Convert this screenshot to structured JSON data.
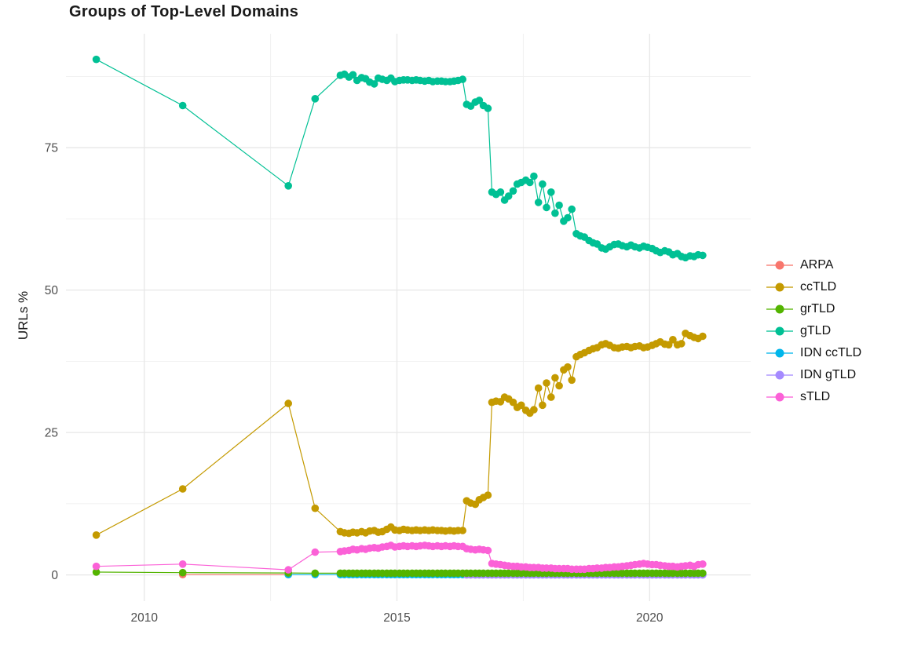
{
  "chart_data": {
    "type": "scatter",
    "title": "Groups of Top-Level Domains",
    "xlabel": "",
    "ylabel": "URLs %",
    "x_ticks": [
      2010,
      2015,
      2020
    ],
    "x_ticks_minor": [
      2012.5,
      2017.5
    ],
    "y_ticks": [
      0,
      25,
      50,
      75
    ],
    "y_ticks_minor": [
      12.5,
      37.5,
      62.5,
      87.5
    ],
    "x_range": [
      2008.45,
      2022.0
    ],
    "y_range": [
      -4.6,
      95.0
    ],
    "grid": "on",
    "legend_position": "right",
    "x": [
      2009.05,
      2010.76,
      2012.85,
      2013.38,
      2013.88,
      2013.96,
      2014.05,
      2014.13,
      2014.21,
      2014.3,
      2014.38,
      2014.46,
      2014.55,
      2014.63,
      2014.71,
      2014.8,
      2014.88,
      2014.96,
      2015.05,
      2015.13,
      2015.21,
      2015.3,
      2015.38,
      2015.46,
      2015.55,
      2015.63,
      2015.71,
      2015.8,
      2015.88,
      2015.96,
      2016.05,
      2016.13,
      2016.21,
      2016.3,
      2016.38,
      2016.46,
      2016.55,
      2016.63,
      2016.71,
      2016.8,
      2016.88,
      2016.96,
      2017.05,
      2017.13,
      2017.21,
      2017.3,
      2017.38,
      2017.46,
      2017.55,
      2017.63,
      2017.71,
      2017.8,
      2017.88,
      2017.96,
      2018.05,
      2018.13,
      2018.21,
      2018.3,
      2018.38,
      2018.46,
      2018.55,
      2018.63,
      2018.71,
      2018.8,
      2018.88,
      2018.96,
      2019.05,
      2019.13,
      2019.21,
      2019.3,
      2019.38,
      2019.46,
      2019.55,
      2019.63,
      2019.71,
      2019.8,
      2019.88,
      2019.96,
      2020.05,
      2020.13,
      2020.21,
      2020.3,
      2020.38,
      2020.46,
      2020.55,
      2020.63,
      2020.71,
      2020.8,
      2020.88,
      2020.96,
      2021.05
    ],
    "series": [
      {
        "name": "ARPA",
        "color": "#F8766D",
        "y": [
          null,
          0.05,
          0.05,
          null,
          null,
          null,
          null,
          null,
          null,
          null,
          null,
          null,
          null,
          null,
          null,
          null,
          null,
          null,
          null,
          null,
          null,
          null,
          null,
          null,
          null,
          null,
          null,
          null,
          null,
          null,
          null,
          null,
          null,
          null,
          null,
          null,
          null,
          null,
          null,
          null,
          null,
          null,
          null,
          null,
          null,
          null,
          null,
          null,
          null,
          null,
          null,
          null,
          null,
          null,
          null,
          null,
          null,
          null,
          null,
          null,
          null,
          null,
          null,
          null,
          null,
          null,
          null,
          null,
          null,
          null,
          null,
          null,
          null,
          null,
          null,
          null,
          null,
          null,
          null,
          null,
          null,
          null,
          null,
          null,
          null,
          null,
          null,
          null,
          null,
          null,
          null
        ]
      },
      {
        "name": "ccTLD",
        "color": "#C49A00",
        "y": [
          7.0,
          15.1,
          30.1,
          11.7,
          7.6,
          7.4,
          7.3,
          7.5,
          7.4,
          7.6,
          7.4,
          7.7,
          7.8,
          7.5,
          7.6,
          8.0,
          8.4,
          7.9,
          7.8,
          8.0,
          7.9,
          7.8,
          7.9,
          7.8,
          7.9,
          7.8,
          7.9,
          7.8,
          7.8,
          7.7,
          7.8,
          7.7,
          7.8,
          7.8,
          13.0,
          12.6,
          12.4,
          13.2,
          13.6,
          14.0,
          30.3,
          30.5,
          30.4,
          31.2,
          30.9,
          30.3,
          29.4,
          29.8,
          28.9,
          28.4,
          29.0,
          32.8,
          29.8,
          33.7,
          31.2,
          34.6,
          33.2,
          36.0,
          36.5,
          34.2,
          38.3,
          38.7,
          39.0,
          39.4,
          39.7,
          39.9,
          40.4,
          40.6,
          40.3,
          39.9,
          39.8,
          40.0,
          40.1,
          39.9,
          40.1,
          40.2,
          39.9,
          40.0,
          40.3,
          40.6,
          40.9,
          40.5,
          40.4,
          41.3,
          40.4,
          40.6,
          42.4,
          42.0,
          41.7,
          41.5,
          41.9
        ]
      },
      {
        "name": "grTLD",
        "color": "#53B400",
        "y": [
          0.5,
          0.4,
          0.35,
          0.3,
          0.3,
          0.3,
          0.3,
          0.3,
          0.3,
          0.3,
          0.3,
          0.3,
          0.3,
          0.3,
          0.3,
          0.3,
          0.3,
          0.3,
          0.3,
          0.3,
          0.3,
          0.3,
          0.3,
          0.3,
          0.3,
          0.3,
          0.3,
          0.3,
          0.3,
          0.3,
          0.3,
          0.3,
          0.3,
          0.3,
          0.3,
          0.3,
          0.3,
          0.3,
          0.3,
          0.3,
          0.3,
          0.3,
          0.3,
          0.3,
          0.3,
          0.3,
          0.3,
          0.3,
          0.3,
          0.3,
          0.3,
          0.3,
          0.3,
          0.3,
          0.3,
          0.3,
          0.3,
          0.3,
          0.3,
          0.3,
          0.3,
          0.3,
          0.3,
          0.3,
          0.3,
          0.3,
          0.3,
          0.3,
          0.3,
          0.3,
          0.3,
          0.3,
          0.3,
          0.3,
          0.3,
          0.3,
          0.3,
          0.3,
          0.3,
          0.3,
          0.3,
          0.3,
          0.3,
          0.3,
          0.3,
          0.3,
          0.3,
          0.3,
          0.3,
          0.3,
          0.3
        ]
      },
      {
        "name": "gTLD",
        "color": "#00C094",
        "y": [
          90.5,
          82.4,
          68.3,
          83.6,
          87.7,
          87.9,
          87.4,
          87.8,
          86.8,
          87.3,
          87.1,
          86.5,
          86.2,
          87.2,
          87.0,
          86.8,
          87.2,
          86.6,
          86.8,
          86.9,
          86.9,
          86.8,
          86.9,
          86.8,
          86.7,
          86.8,
          86.6,
          86.7,
          86.7,
          86.6,
          86.6,
          86.7,
          86.8,
          87.0,
          82.6,
          82.3,
          83.0,
          83.3,
          82.4,
          81.9,
          67.2,
          66.8,
          67.2,
          65.8,
          66.5,
          67.4,
          68.6,
          68.9,
          69.3,
          68.9,
          70.0,
          65.4,
          68.6,
          64.5,
          67.2,
          63.5,
          64.9,
          62.1,
          62.7,
          64.2,
          59.9,
          59.5,
          59.3,
          58.7,
          58.3,
          58.1,
          57.4,
          57.2,
          57.6,
          58.0,
          58.1,
          57.8,
          57.6,
          57.9,
          57.6,
          57.4,
          57.7,
          57.5,
          57.3,
          56.9,
          56.6,
          56.9,
          56.7,
          56.2,
          56.4,
          55.9,
          55.7,
          56.0,
          55.9,
          56.2,
          56.1
        ]
      },
      {
        "name": "IDN ccTLD",
        "color": "#00B6EB",
        "y": [
          null,
          null,
          0.05,
          0.05,
          0.05,
          0.05,
          0.05,
          0.05,
          0.05,
          0.05,
          0.05,
          0.05,
          0.05,
          0.05,
          0.05,
          0.05,
          0.05,
          0.05,
          0.05,
          0.05,
          0.05,
          0.05,
          0.05,
          0.05,
          0.05,
          0.05,
          0.05,
          0.05,
          0.05,
          0.05,
          0.05,
          0.05,
          0.05,
          0.05,
          0.05,
          0.05,
          0.05,
          0.05,
          0.05,
          0.05,
          0.05,
          0.05,
          0.05,
          0.05,
          0.05,
          0.05,
          0.05,
          0.05,
          0.05,
          0.05,
          0.05,
          0.05,
          0.05,
          0.05,
          0.05,
          0.05,
          0.05,
          0.05,
          0.05,
          0.05,
          0.05,
          0.05,
          0.05,
          0.05,
          0.05,
          0.05,
          0.05,
          0.05,
          0.05,
          0.05,
          0.05,
          0.05,
          0.05,
          0.05,
          0.05,
          0.05,
          0.05,
          0.05,
          0.05,
          0.05,
          0.05,
          0.05,
          0.05,
          0.05,
          0.05,
          0.05,
          0.05,
          0.05,
          0.05,
          0.05,
          0.05
        ]
      },
      {
        "name": "IDN gTLD",
        "color": "#A58AFF",
        "y": [
          null,
          null,
          null,
          null,
          null,
          null,
          null,
          null,
          null,
          null,
          null,
          null,
          null,
          null,
          null,
          null,
          null,
          null,
          null,
          null,
          null,
          null,
          null,
          null,
          null,
          null,
          null,
          null,
          null,
          null,
          null,
          null,
          null,
          null,
          0.0,
          0.0,
          0.0,
          0.0,
          0.0,
          0.0,
          0.0,
          0.0,
          0.0,
          0.0,
          0.0,
          0.0,
          0.0,
          0.0,
          0.0,
          0.0,
          0.0,
          0.0,
          0.0,
          0.0,
          0.0,
          0.0,
          0.0,
          0.0,
          0.0,
          0.0,
          0.0,
          0.0,
          0.0,
          0.0,
          0.0,
          0.0,
          0.0,
          0.0,
          0.0,
          0.0,
          0.0,
          0.0,
          0.0,
          0.0,
          0.0,
          0.0,
          0.0,
          0.0,
          0.0,
          0.0,
          0.0,
          0.0,
          0.0,
          0.0,
          0.0,
          0.0,
          0.0,
          0.0,
          0.0,
          0.0,
          0.0
        ]
      },
      {
        "name": "sTLD",
        "color": "#FB61D7",
        "y": [
          1.5,
          1.9,
          0.9,
          4.0,
          4.1,
          4.2,
          4.3,
          4.5,
          4.4,
          4.6,
          4.5,
          4.7,
          4.8,
          4.7,
          4.9,
          5.0,
          5.2,
          4.9,
          5.0,
          5.1,
          5.0,
          5.1,
          5.0,
          5.1,
          5.2,
          5.1,
          5.0,
          5.1,
          5.0,
          5.1,
          5.0,
          5.1,
          5.0,
          5.0,
          4.6,
          4.5,
          4.4,
          4.5,
          4.4,
          4.3,
          2.0,
          1.9,
          1.8,
          1.7,
          1.6,
          1.5,
          1.5,
          1.4,
          1.4,
          1.3,
          1.3,
          1.3,
          1.2,
          1.2,
          1.2,
          1.1,
          1.1,
          1.1,
          1.1,
          1.0,
          1.0,
          1.0,
          1.0,
          1.1,
          1.1,
          1.2,
          1.2,
          1.3,
          1.3,
          1.4,
          1.4,
          1.5,
          1.6,
          1.7,
          1.8,
          1.9,
          2.0,
          1.9,
          1.8,
          1.8,
          1.7,
          1.6,
          1.5,
          1.5,
          1.4,
          1.5,
          1.6,
          1.7,
          1.5,
          1.8,
          1.9
        ]
      }
    ]
  }
}
